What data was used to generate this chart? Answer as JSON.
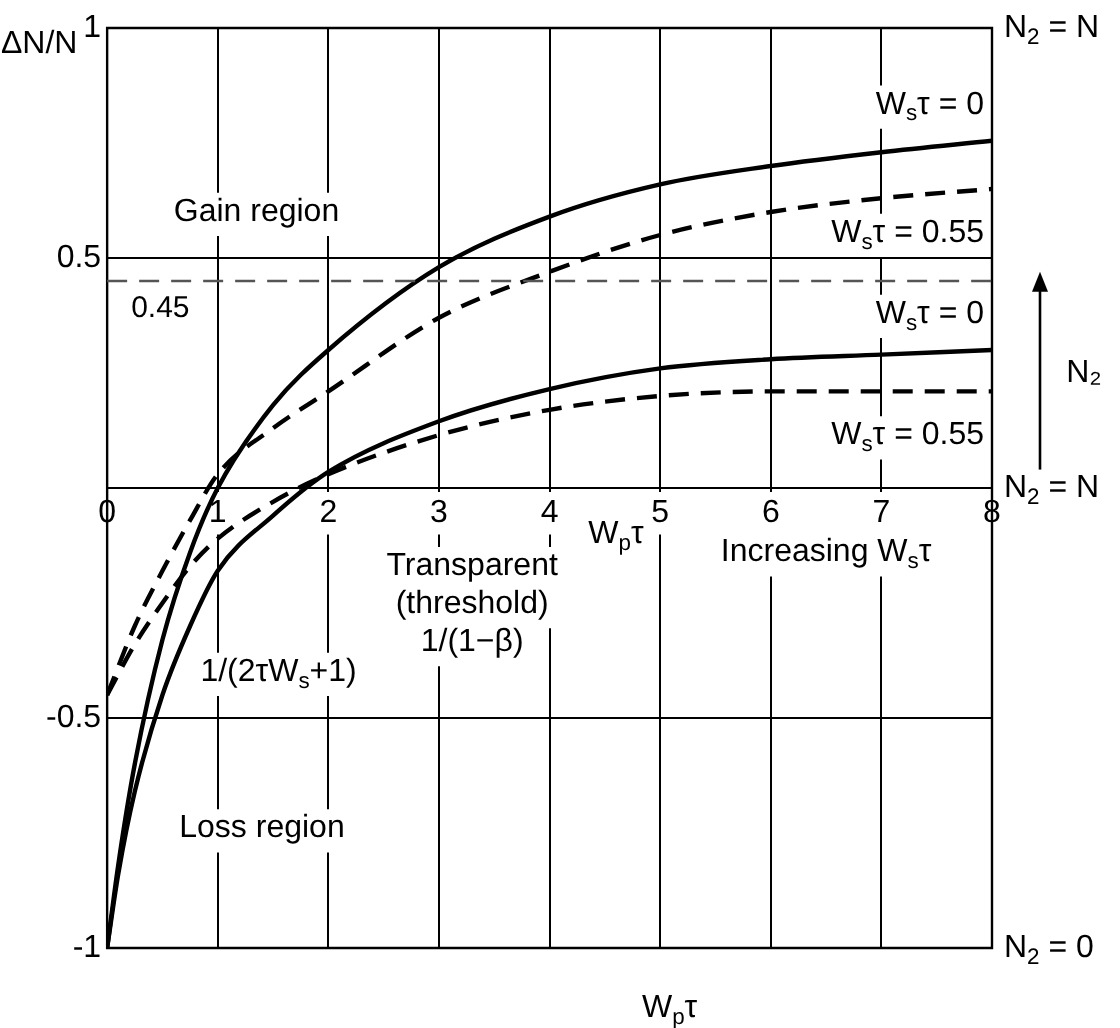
{
  "chart_data": {
    "type": "line",
    "ylabel": "ΔN/N",
    "xlabel": "W$_{p}$τ",
    "y2label": "N₂",
    "xlim": [
      0,
      8
    ],
    "xticks": [
      0,
      1,
      2,
      3,
      4,
      5,
      6,
      7,
      8
    ],
    "ylim": [
      -1,
      1
    ],
    "yticks": [
      -1,
      -0.5,
      0.5,
      1
    ],
    "grid": true,
    "legend": false,
    "marker": "none",
    "series": [
      {
        "name": "W$_{s}$τ = 0",
        "color": "#000000",
        "line_style": "solid",
        "x": [
          0,
          0.1,
          0.25,
          0.5,
          0.75,
          1,
          1.5,
          2,
          3,
          4,
          5,
          6,
          7,
          8
        ],
        "values": [
          -1,
          -0.82,
          -0.6,
          -0.33,
          -0.14,
          0,
          0.18,
          0.3,
          0.48,
          0.59,
          0.66,
          0.7,
          0.73,
          0.755
        ]
      },
      {
        "name": "W$_{s}$τ = 0.55",
        "color": "#000000",
        "line_style": "dashed",
        "x": [
          0,
          0.25,
          0.5,
          0.75,
          1,
          1.5,
          2,
          3,
          4,
          5,
          6,
          7,
          8
        ],
        "values": [
          -0.45,
          -0.3,
          -0.18,
          -0.07,
          0.03,
          0.13,
          0.21,
          0.37,
          0.47,
          0.55,
          0.6,
          0.63,
          0.65
        ]
      },
      {
        "name": "W$_{s}$τ = 0",
        "color": "#000000",
        "line_style": "solid",
        "x": [
          0,
          0.1,
          0.25,
          0.5,
          0.75,
          1,
          1.5,
          2,
          3,
          4,
          5,
          6,
          7,
          8
        ],
        "values": [
          -1,
          -0.84,
          -0.66,
          -0.45,
          -0.3,
          -0.18,
          -0.06,
          0.035,
          0.145,
          0.215,
          0.26,
          0.28,
          0.29,
          0.3
        ]
      },
      {
        "name": "W$_{s}$τ = 0.55",
        "color": "#000000",
        "line_style": "dashed",
        "x": [
          0,
          0.25,
          0.5,
          0.75,
          1,
          1.5,
          2,
          3,
          4,
          5,
          6,
          7,
          8
        ],
        "values": [
          -0.45,
          -0.34,
          -0.25,
          -0.17,
          -0.11,
          -0.03,
          0.03,
          0.115,
          0.17,
          0.2,
          0.21,
          0.21,
          0.21
        ]
      }
    ],
    "ref_lines": [
      {
        "axis": "y",
        "value": 0.45,
        "label": "0.45",
        "color": "#555555",
        "line_style": "dashed"
      }
    ],
    "annotations": [
      "Gain region",
      "Loss region",
      "Transparent\n(threshold)\n1/(1−β)",
      "1/(2τW$_{s}$+1)",
      "Increasing W$_{s}$τ",
      "W$_{p}$τ",
      "N$_{2}$ = N",
      "N$_{2}$ = N",
      "N$_{2}$ = 0"
    ]
  }
}
